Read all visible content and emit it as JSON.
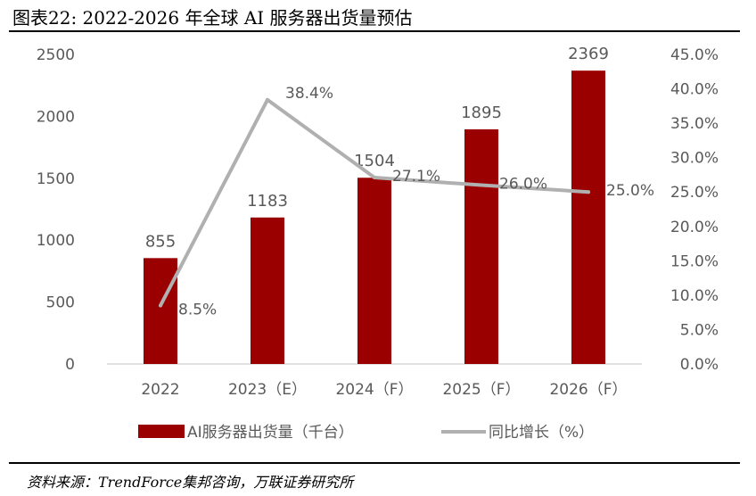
{
  "figure": {
    "title": "图表22:  2022-2026 年全球 AI 服务器出货量预估",
    "source": "资料来源：TrendForce集邦咨询，万联证券研究所"
  },
  "chart_data": {
    "type": "bar",
    "categories": [
      "2022",
      "2023（E）",
      "2024（F）",
      "2025（F）",
      "2026（F）"
    ],
    "series": [
      {
        "name": "AI服务器出货量（千台）",
        "type": "bar",
        "axis": "left",
        "values": [
          855,
          1183,
          1504,
          1895,
          2369
        ],
        "labels": [
          "855",
          "1183",
          "1504",
          "1895",
          "2369"
        ]
      },
      {
        "name": "同比增长（%）",
        "type": "line",
        "axis": "right",
        "values": [
          8.5,
          38.4,
          27.1,
          26.0,
          25.0
        ],
        "labels": [
          "8.5%",
          "38.4%",
          "27.1%",
          "26.0%",
          "25.0%"
        ]
      }
    ],
    "y_left": {
      "ylim": [
        0,
        2500
      ],
      "ticks": [
        "0",
        "500",
        "1000",
        "1500",
        "2000",
        "2500"
      ]
    },
    "y_right": {
      "ylim": [
        0,
        45
      ],
      "ticks": [
        "0.0%",
        "5.0%",
        "10.0%",
        "15.0%",
        "20.0%",
        "25.0%",
        "30.0%",
        "35.0%",
        "40.0%",
        "45.0%"
      ]
    },
    "legend_position": "bottom",
    "grid": false,
    "colors": {
      "bar": "#9b0000",
      "line": "#b0b0b0",
      "text": "#595959",
      "axis": "#d9d9d9"
    }
  }
}
